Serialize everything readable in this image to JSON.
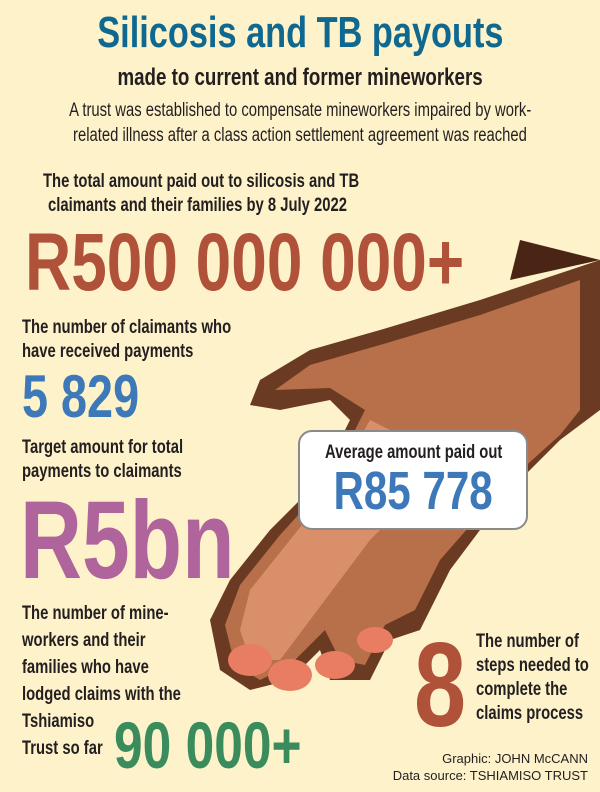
{
  "title": "Silicosis and TB payouts",
  "subtitle": "made to current and former mineworkers",
  "description": [
    "A trust was established to compensate mineworkers impaired by work-",
    "related illness after a class action settlement agreement was reached"
  ],
  "total_paid": {
    "label": [
      "The total amount paid out to silicosis and TB",
      "claimants and their families by 8 July 2022"
    ],
    "value": "R500 000 000+"
  },
  "claimants_paid": {
    "label": [
      "The number of claimants who",
      "have received payments"
    ],
    "value": "5 829"
  },
  "target": {
    "label": [
      "Target amount for total",
      "payments to claimants"
    ],
    "value": "R5bn"
  },
  "average": {
    "label": "Average amount paid out",
    "value": "R85 778"
  },
  "lodged": {
    "label": [
      "The number of mine-",
      "workers and their",
      "families who have",
      "lodged claims with the",
      "Tshiamiso",
      "Trust so far"
    ],
    "value": "90 000+"
  },
  "steps": {
    "value": "8",
    "label": [
      "The number of",
      "steps needed to",
      "complete the",
      "claims process"
    ]
  },
  "credits": {
    "graphic": "Graphic: JOHN McCANN",
    "source": "Data source: TSHIAMISO TRUST"
  },
  "colors": {
    "title": "#0f6890",
    "total": "#b0523a",
    "claimants": "#3d78b8",
    "target": "#b0649c",
    "lodged": "#3b8c5c",
    "steps": "#b0523a"
  }
}
